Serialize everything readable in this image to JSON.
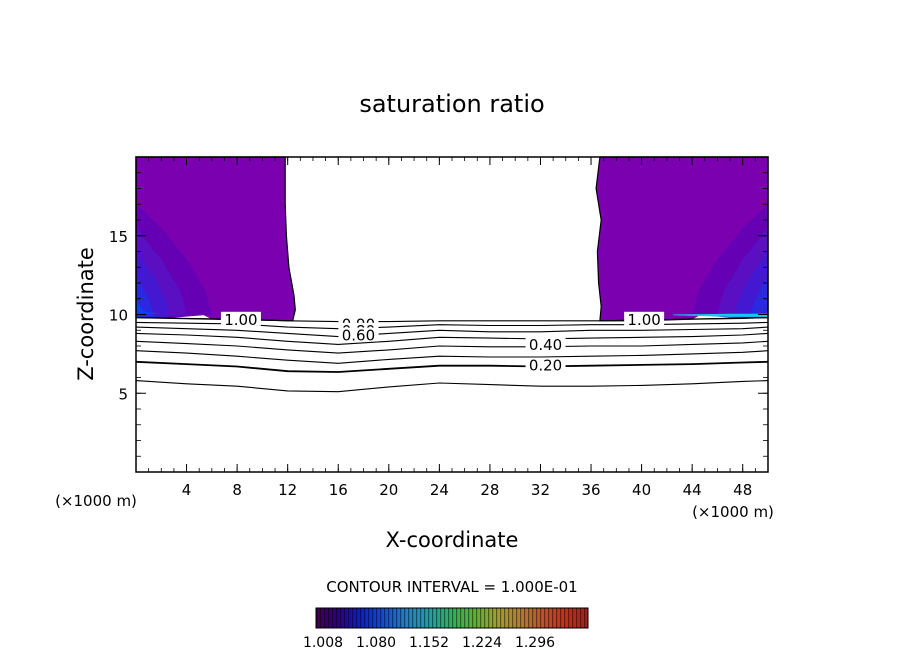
{
  "chart_data": {
    "type": "contour",
    "title": "saturation ratio",
    "xlabel": "X-coordinate",
    "ylabel": "Z-coordinate",
    "x_unit_label": "(×1000 m)",
    "z_unit_label": "(×1000 m)",
    "xlim": [
      0,
      50
    ],
    "ylim": [
      0,
      20
    ],
    "x_ticks": [
      4,
      8,
      12,
      16,
      20,
      24,
      28,
      32,
      36,
      40,
      44,
      48
    ],
    "y_ticks": [
      5,
      10,
      15
    ],
    "contour_interval_text": "CONTOUR INTERVAL = 1.000E-01",
    "contour_labels": [
      {
        "text": "1.00",
        "x": 8.3,
        "z": 9.6
      },
      {
        "text": "0.90",
        "x": 17.6,
        "z": 9.3
      },
      {
        "text": "0.80",
        "x": 17.6,
        "z": 8.9
      },
      {
        "text": "0.60",
        "x": 17.6,
        "z": 8.6
      },
      {
        "text": "0.40",
        "x": 32.4,
        "z": 8.0
      },
      {
        "text": "0.20",
        "x": 32.4,
        "z": 6.7
      },
      {
        "text": "1.00",
        "x": 40.2,
        "z": 9.6
      }
    ],
    "contour_lines": [
      {
        "x": [
          0,
          4,
          8,
          12,
          16,
          20,
          24,
          28,
          32,
          36,
          40,
          44,
          48,
          50
        ],
        "z": [
          9.8,
          9.75,
          9.7,
          9.6,
          9.55,
          9.55,
          9.6,
          9.6,
          9.6,
          9.6,
          9.6,
          9.7,
          9.75,
          9.8
        ]
      },
      {
        "x": [
          0,
          4,
          8,
          12,
          16,
          20,
          24,
          28,
          32,
          36,
          40,
          44,
          48,
          50
        ],
        "z": [
          9.5,
          9.45,
          9.4,
          9.2,
          9.1,
          9.2,
          9.35,
          9.3,
          9.3,
          9.35,
          9.35,
          9.4,
          9.45,
          9.5
        ]
      },
      {
        "x": [
          0,
          4,
          8,
          12,
          16,
          20,
          24,
          28,
          32,
          36,
          40,
          44,
          48,
          50
        ],
        "z": [
          9.2,
          9.1,
          9.0,
          8.8,
          8.6,
          8.8,
          9.0,
          8.9,
          8.9,
          9.0,
          9.0,
          9.05,
          9.1,
          9.2
        ]
      },
      {
        "x": [
          0,
          4,
          8,
          12,
          16,
          20,
          24,
          28,
          32,
          36,
          40,
          44,
          48,
          50
        ],
        "z": [
          8.8,
          8.7,
          8.55,
          8.3,
          8.1,
          8.3,
          8.55,
          8.5,
          8.45,
          8.5,
          8.55,
          8.6,
          8.7,
          8.8
        ]
      },
      {
        "x": [
          0,
          4,
          8,
          12,
          16,
          20,
          24,
          28,
          32,
          36,
          40,
          44,
          48,
          50
        ],
        "z": [
          8.3,
          8.15,
          8.0,
          7.75,
          7.55,
          7.75,
          8.0,
          7.95,
          7.95,
          8.0,
          8.0,
          8.1,
          8.2,
          8.3
        ]
      },
      {
        "x": [
          0,
          4,
          8,
          12,
          16,
          20,
          24,
          28,
          32,
          36,
          40,
          44,
          48,
          50
        ],
        "z": [
          7.7,
          7.55,
          7.35,
          7.1,
          6.9,
          7.15,
          7.35,
          7.3,
          7.3,
          7.35,
          7.4,
          7.5,
          7.6,
          7.7
        ]
      },
      {
        "x": [
          0,
          4,
          8,
          12,
          16,
          20,
          24,
          28,
          32,
          36,
          40,
          44,
          48,
          50
        ],
        "z": [
          7.0,
          6.85,
          6.7,
          6.4,
          6.35,
          6.55,
          6.75,
          6.75,
          6.7,
          6.75,
          6.8,
          6.85,
          6.95,
          7.0
        ]
      },
      {
        "x": [
          0,
          4,
          8,
          12,
          16,
          20,
          24,
          28,
          32,
          36,
          40,
          44,
          48,
          50
        ],
        "z": [
          5.8,
          5.6,
          5.45,
          5.15,
          5.1,
          5.4,
          5.65,
          5.55,
          5.45,
          5.45,
          5.5,
          5.6,
          5.75,
          5.8
        ]
      }
    ],
    "filled_regions": [
      {
        "name": "left",
        "boundary": [
          [
            0,
            20
          ],
          [
            11.8,
            20
          ],
          [
            11.8,
            17
          ],
          [
            11.9,
            15
          ],
          [
            12.1,
            13
          ],
          [
            12.5,
            11.2
          ],
          [
            12.6,
            10.3
          ],
          [
            12.4,
            9.6
          ],
          [
            0,
            9.8
          ]
        ],
        "bands": [
          {
            "color": "#7a00b0",
            "pts": [
              [
                0,
                20
              ],
              [
                11.8,
                20
              ],
              [
                11.8,
                17
              ],
              [
                11.9,
                15
              ],
              [
                12.1,
                13
              ],
              [
                12.5,
                11.2
              ],
              [
                12.6,
                10.3
              ],
              [
                12.4,
                9.6
              ],
              [
                6,
                9.7
              ],
              [
                4,
                10.5
              ],
              [
                2,
                12
              ],
              [
                0,
                13
              ]
            ]
          },
          {
            "color": "#6600b4",
            "pts": [
              [
                0,
                17
              ],
              [
                2,
                15.5
              ],
              [
                4,
                13.5
              ],
              [
                5.5,
                11.5
              ],
              [
                6,
                10
              ],
              [
                3,
                9.8
              ],
              [
                0,
                9.8
              ]
            ]
          },
          {
            "color": "#5a10c2",
            "pts": [
              [
                0,
                15.5
              ],
              [
                2,
                13.5
              ],
              [
                3.5,
                11.5
              ],
              [
                4,
                10
              ],
              [
                0,
                9.8
              ]
            ]
          },
          {
            "color": "#4418d0",
            "pts": [
              [
                0,
                14
              ],
              [
                1.5,
                12.3
              ],
              [
                2.5,
                10.6
              ],
              [
                2.5,
                9.8
              ],
              [
                0,
                9.8
              ]
            ]
          },
          {
            "color": "#2a28e0",
            "pts": [
              [
                0,
                12.5
              ],
              [
                1,
                11
              ],
              [
                1.5,
                9.8
              ],
              [
                0,
                9.8
              ]
            ]
          },
          {
            "color": "#1440f0",
            "pts": [
              [
                0,
                11
              ],
              [
                0.6,
                10.2
              ],
              [
                2,
                10.05
              ],
              [
                0,
                10.05
              ]
            ]
          }
        ]
      },
      {
        "name": "right",
        "boundary": [
          [
            36.7,
            20
          ],
          [
            50,
            20
          ],
          [
            50,
            9.8
          ],
          [
            36.7,
            9.6
          ],
          [
            36.8,
            10.5
          ],
          [
            36.6,
            12
          ],
          [
            36.5,
            14
          ],
          [
            36.8,
            16
          ],
          [
            36.4,
            18
          ]
        ],
        "bands": [
          {
            "color": "#7a00b0",
            "pts": [
              [
                36.7,
                20
              ],
              [
                50,
                20
              ],
              [
                50,
                13
              ],
              [
                48,
                12
              ],
              [
                46,
                10.5
              ],
              [
                44,
                9.7
              ],
              [
                36.7,
                9.6
              ],
              [
                36.8,
                10.5
              ],
              [
                36.6,
                12
              ],
              [
                36.5,
                14
              ],
              [
                36.8,
                16
              ],
              [
                36.4,
                18
              ]
            ]
          },
          {
            "color": "#6600b4",
            "pts": [
              [
                50,
                17
              ],
              [
                48,
                15.5
              ],
              [
                46,
                13.5
              ],
              [
                44.5,
                11.5
              ],
              [
                44,
                10
              ],
              [
                47,
                9.8
              ],
              [
                50,
                9.8
              ]
            ]
          },
          {
            "color": "#5a10c2",
            "pts": [
              [
                50,
                15.5
              ],
              [
                48,
                13.5
              ],
              [
                46.5,
                11.5
              ],
              [
                46,
                10
              ],
              [
                50,
                9.8
              ]
            ]
          },
          {
            "color": "#4418d0",
            "pts": [
              [
                50,
                14
              ],
              [
                48.5,
                12.3
              ],
              [
                47.5,
                10.6
              ],
              [
                47.5,
                9.8
              ],
              [
                50,
                9.8
              ]
            ]
          },
          {
            "color": "#2a28e0",
            "pts": [
              [
                50,
                12.5
              ],
              [
                49,
                11
              ],
              [
                48.5,
                9.8
              ],
              [
                50,
                9.8
              ]
            ]
          },
          {
            "color": "#14c8f0",
            "pts": [
              [
                42.5,
                9.95
              ],
              [
                47,
                9.85
              ],
              [
                50,
                9.85
              ],
              [
                50,
                10.05
              ],
              [
                47,
                10.05
              ],
              [
                42.5,
                10.0
              ]
            ]
          }
        ]
      }
    ],
    "colorbar": {
      "labels": [
        "1.008",
        "1.080",
        "1.152",
        "1.224",
        "1.296"
      ],
      "colors": [
        "#40004a",
        "#2c0080",
        "#1020c0",
        "#1050d0",
        "#2080c8",
        "#20a0a0",
        "#30b060",
        "#60b030",
        "#a0a030",
        "#b08030",
        "#c05030",
        "#c03020",
        "#a02020"
      ]
    }
  }
}
